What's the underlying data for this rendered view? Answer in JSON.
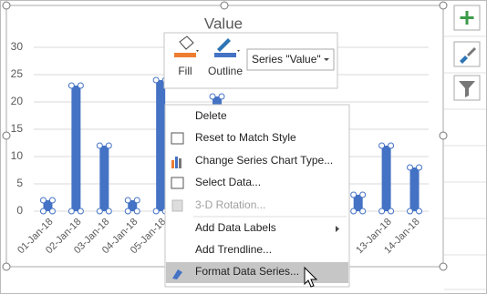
{
  "chart_data": {
    "type": "bar",
    "title": "Value",
    "categories": [
      "01-Jan-18",
      "02-Jan-18",
      "03-Jan-18",
      "04-Jan-18",
      "05-Jan-18",
      null,
      null,
      null,
      null,
      null,
      null,
      null,
      "13-Jan-18",
      "14-Jan-18"
    ],
    "values": [
      2,
      23,
      12,
      2,
      24,
      null,
      21,
      null,
      null,
      null,
      null,
      3,
      12,
      8
    ],
    "color": "#4472c4",
    "ylim": [
      0,
      30
    ],
    "yticks": [
      0,
      5,
      10,
      15,
      20,
      25,
      30
    ],
    "grid": true
  },
  "toolbar": {
    "fill": "Fill",
    "outline": "Outline",
    "series_dropdown": "Series \"Value\""
  },
  "context_menu": {
    "items": [
      "Delete",
      "Reset to Match Style",
      "Change Series Chart Type...",
      "Select Data...",
      "3-D Rotation...",
      "Add Data Labels",
      "Add Trendline...",
      "Format Data Series..."
    ]
  }
}
